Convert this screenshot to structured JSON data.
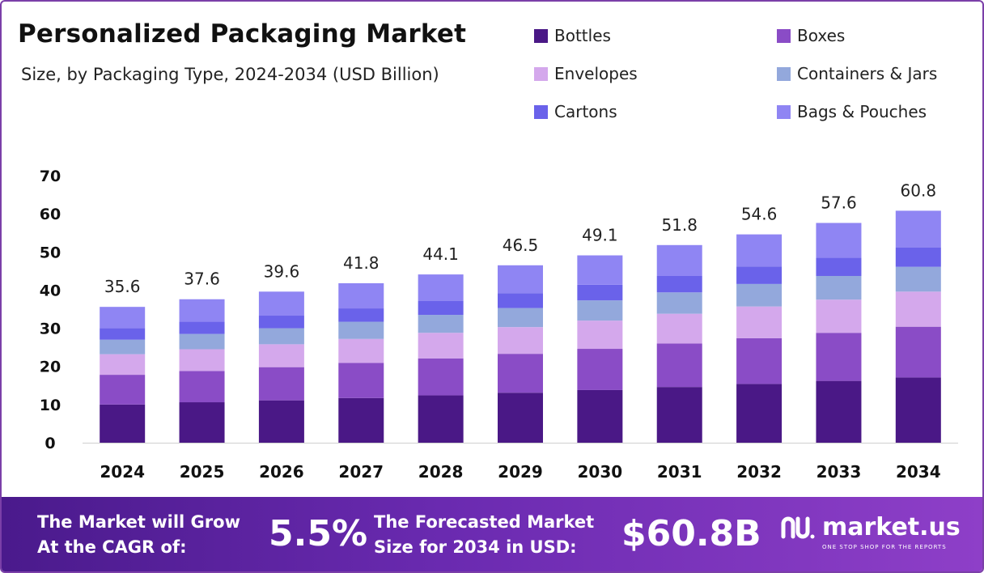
{
  "chart_data": {
    "type": "bar",
    "stacked": true,
    "title": "Personalized Packaging Market",
    "subtitle": "Size, by Packaging Type, 2024-2034 (USD Billion)",
    "categories": [
      "2024",
      "2025",
      "2026",
      "2027",
      "2028",
      "2029",
      "2030",
      "2031",
      "2032",
      "2033",
      "2034"
    ],
    "totals": [
      "35.6",
      "37.6",
      "39.6",
      "41.8",
      "44.1",
      "46.5",
      "49.1",
      "51.8",
      "54.6",
      "57.6",
      "60.8"
    ],
    "yticks": [
      "0",
      "10",
      "20",
      "30",
      "40",
      "50",
      "60",
      "70"
    ],
    "ylim": [
      0,
      70
    ],
    "xlabel": "",
    "ylabel": "",
    "series": [
      {
        "name": "Bottles",
        "color": "#4a1886",
        "values": [
          10.0,
          10.6,
          11.1,
          11.7,
          12.4,
          13.1,
          13.8,
          14.6,
          15.4,
          16.2,
          17.1
        ]
      },
      {
        "name": "Boxes",
        "color": "#8a4cc6",
        "values": [
          7.8,
          8.2,
          8.7,
          9.2,
          9.7,
          10.2,
          10.8,
          11.4,
          12.0,
          12.6,
          13.3
        ]
      },
      {
        "name": "Envelopes",
        "color": "#d4a8ec",
        "values": [
          5.4,
          5.7,
          6.0,
          6.3,
          6.7,
          7.0,
          7.4,
          7.8,
          8.3,
          8.7,
          9.2
        ]
      },
      {
        "name": "Containers & Jars",
        "color": "#93a8dc",
        "values": [
          3.8,
          4.0,
          4.2,
          4.5,
          4.7,
          5.0,
          5.3,
          5.6,
          5.9,
          6.2,
          6.5
        ]
      },
      {
        "name": "Cartons",
        "color": "#6a62ea",
        "values": [
          3.0,
          3.2,
          3.3,
          3.5,
          3.7,
          3.9,
          4.1,
          4.3,
          4.6,
          4.8,
          5.1
        ]
      },
      {
        "name": "Bags & Pouches",
        "color": "#8f85f3",
        "values": [
          5.6,
          5.9,
          6.3,
          6.6,
          6.9,
          7.3,
          7.7,
          8.1,
          8.4,
          9.1,
          9.6
        ]
      }
    ]
  },
  "footer": {
    "cagr_line1": "The Market will Grow",
    "cagr_line2": "At the CAGR of:",
    "cagr_value": "5.5%",
    "forecast_line1": "The Forecasted Market",
    "forecast_line2": "Size for 2034 in USD:",
    "forecast_value": "$60.8B",
    "logo_name": "market.us",
    "logo_tagline": "ONE STOP SHOP FOR THE REPORTS"
  }
}
